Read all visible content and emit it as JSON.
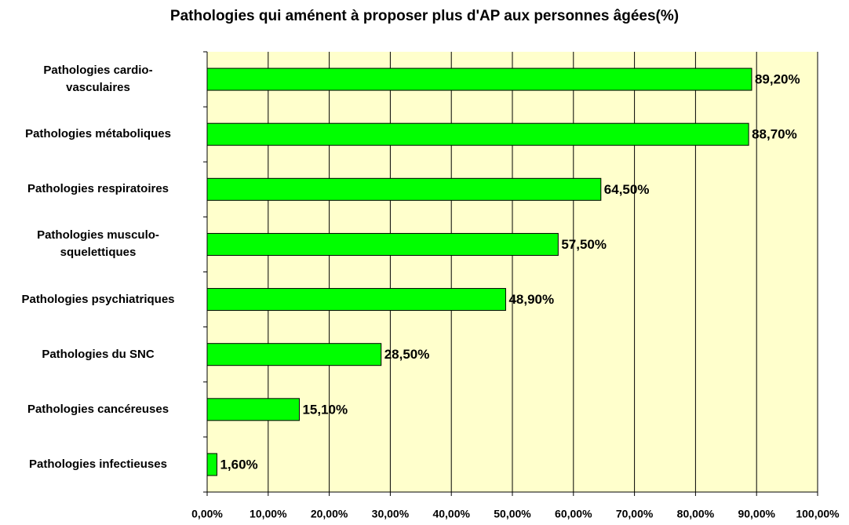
{
  "chart_data": {
    "type": "hbar",
    "title": "Pathologies qui aménent à proposer plus d'AP aux personnes âgées(%)",
    "categories": [
      "Pathologies cardio-\nvasculaires",
      "Pathologies métaboliques",
      "Pathologies respiratoires",
      "Pathologies musculo-\nsquelettiques",
      "Pathologies psychiatriques",
      "Pathologies du SNC",
      "Pathologies cancéreuses",
      "Pathologies infectieuses"
    ],
    "values": [
      89.2,
      88.7,
      64.5,
      57.5,
      48.9,
      28.5,
      15.1,
      1.6
    ],
    "value_labels": [
      "89,20%",
      "88,70%",
      "64,50%",
      "57,50%",
      "48,90%",
      "28,50%",
      "15,10%",
      "1,60%"
    ],
    "color": "#00ff00",
    "xlim": [
      0,
      100
    ],
    "xticks": [
      {
        "value": 0,
        "label": "0,00%"
      },
      {
        "value": 10,
        "label": "10,00%"
      },
      {
        "value": 20,
        "label": "20,00%"
      },
      {
        "value": 30,
        "label": "30,00%"
      },
      {
        "value": 40,
        "label": "40,00%"
      },
      {
        "value": 50,
        "label": "50,00%"
      },
      {
        "value": 60,
        "label": "60,00%"
      },
      {
        "value": 70,
        "label": "70,00%"
      },
      {
        "value": 80,
        "label": "80,00%"
      },
      {
        "value": 90,
        "label": "90,00%"
      },
      {
        "value": 100,
        "label": "100,00%"
      }
    ],
    "grid": true
  }
}
